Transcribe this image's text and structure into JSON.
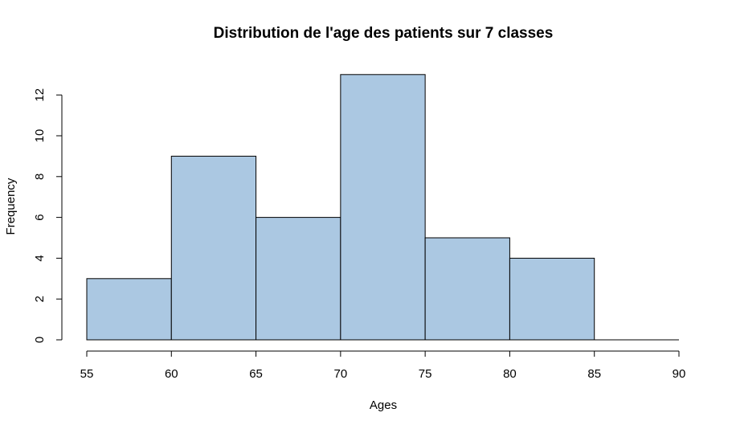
{
  "chart_data": {
    "type": "bar",
    "title": "Distribution de l'age des patients sur 7 classes",
    "xlabel": "Ages",
    "ylabel": "Frequency",
    "bins": [
      {
        "from": 55,
        "to": 60,
        "value": 3
      },
      {
        "from": 60,
        "to": 65,
        "value": 9
      },
      {
        "from": 65,
        "to": 70,
        "value": 6
      },
      {
        "from": 70,
        "to": 75,
        "value": 13
      },
      {
        "from": 75,
        "to": 80,
        "value": 5
      },
      {
        "from": 80,
        "to": 85,
        "value": 4
      },
      {
        "from": 85,
        "to": 90,
        "value": 0
      }
    ],
    "x_ticks": [
      55,
      60,
      65,
      70,
      75,
      80,
      85,
      90
    ],
    "y_ticks": [
      0,
      2,
      4,
      6,
      8,
      10,
      12
    ],
    "xlim": [
      55,
      90
    ],
    "ylim": [
      0,
      13
    ],
    "bar_color": "#abc8e2",
    "grid": false,
    "legend": "none"
  }
}
